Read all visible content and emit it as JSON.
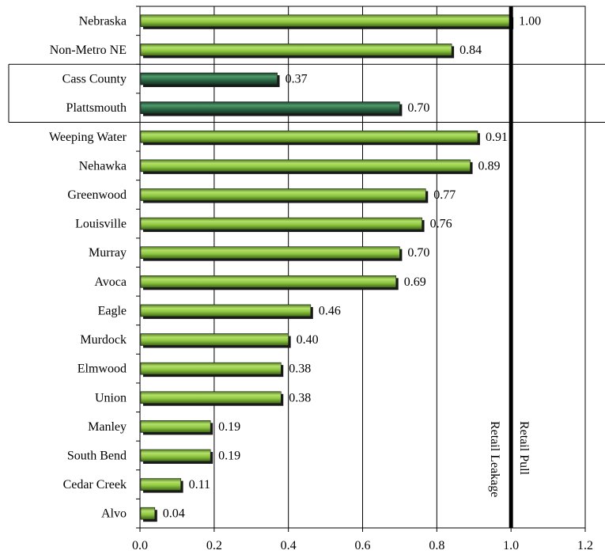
{
  "chart_data": {
    "type": "bar",
    "orientation": "horizontal",
    "categories": [
      "Nebraska",
      "Non-Metro NE",
      "Cass County",
      "Plattsmouth",
      "Weeping Water",
      "Nehawka",
      "Greenwood",
      "Louisville",
      "Murray",
      "Avoca",
      "Eagle",
      "Murdock",
      "Elmwood",
      "Union",
      "Manley",
      "South Bend",
      "Cedar Creek",
      "Alvo"
    ],
    "values": [
      1.0,
      0.84,
      0.37,
      0.7,
      0.91,
      0.89,
      0.77,
      0.76,
      0.7,
      0.69,
      0.46,
      0.4,
      0.38,
      0.38,
      0.19,
      0.19,
      0.11,
      0.04
    ],
    "value_labels": [
      "1.00",
      "0.84",
      "0.37",
      "0.70",
      "0.91",
      "0.89",
      "0.77",
      "0.76",
      "0.70",
      "0.69",
      "0.46",
      "0.40",
      "0.38",
      "0.38",
      "0.19",
      "0.19",
      "0.11",
      "0.04"
    ],
    "highlighted_categories": [
      "Cass County",
      "Plattsmouth"
    ],
    "xlim": [
      0,
      1.2
    ],
    "x_ticks": [
      0.0,
      0.2,
      0.4,
      0.6,
      0.8,
      1.0,
      1.2
    ],
    "x_tick_labels": [
      "0.0",
      "0.2",
      "0.4",
      "0.6",
      "0.8",
      "1.0",
      "1.2"
    ],
    "reference_line": {
      "value": 1.0,
      "left_label": "Retail Leakage",
      "right_label": "Retail Pull"
    },
    "grid": true,
    "colors": {
      "bar": "#8dc63f",
      "bar_highlight": "#2e6b47",
      "bar_outline": "#1a1a1a",
      "grid": "#000000"
    }
  }
}
